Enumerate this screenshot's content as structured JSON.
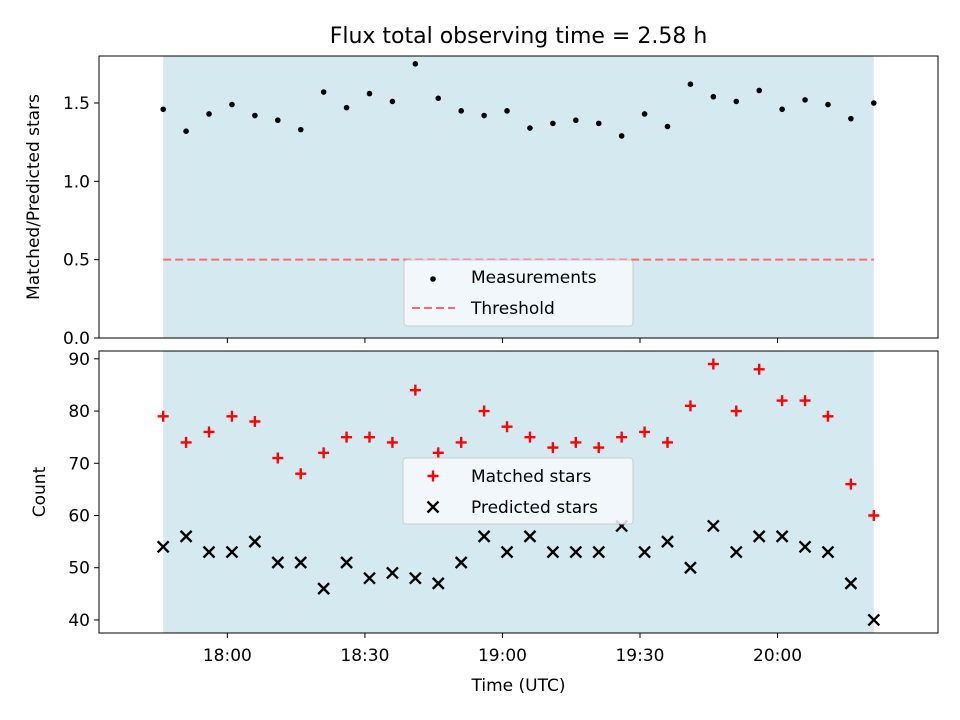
{
  "chart_data": [
    {
      "type": "scatter",
      "title": "Flux total observing time = 2.58 h",
      "ylabel": "Matched/Predicted stars",
      "ylim": [
        0,
        1.8
      ],
      "yticks": [
        0.0,
        0.5,
        1.0,
        1.5
      ],
      "ytick_labels": [
        "0.0",
        "0.5",
        "1.0",
        "1.5"
      ],
      "x": [
        "17:46",
        "17:51",
        "17:56",
        "18:01",
        "18:06",
        "18:11",
        "18:16",
        "18:21",
        "18:26",
        "18:31",
        "18:36",
        "18:41",
        "18:46",
        "18:51",
        "18:56",
        "19:01",
        "19:06",
        "19:11",
        "19:16",
        "19:21",
        "19:26",
        "19:31",
        "19:36",
        "19:41",
        "19:46",
        "19:51",
        "19:56",
        "20:01",
        "20:06",
        "20:11",
        "20:16",
        "20:21"
      ],
      "series": [
        {
          "name": "Measurements",
          "marker": "dot",
          "color": "#000000",
          "values": [
            1.46,
            1.32,
            1.43,
            1.49,
            1.42,
            1.39,
            1.33,
            1.57,
            1.47,
            1.56,
            1.51,
            1.75,
            1.53,
            1.45,
            1.42,
            1.45,
            1.34,
            1.37,
            1.39,
            1.37,
            1.29,
            1.43,
            1.35,
            1.62,
            1.54,
            1.51,
            1.58,
            1.46,
            1.52,
            1.49,
            1.4,
            1.5
          ]
        },
        {
          "name": "Threshold",
          "line": "dashed",
          "color": "#ff6b6b",
          "value": 0.5
        }
      ],
      "shaded_region": {
        "from": "17:46",
        "to": "20:21",
        "color": "#d4eaf0"
      },
      "legend": {
        "placement": "lower-center",
        "entries": [
          "Measurements",
          "Threshold"
        ]
      }
    },
    {
      "type": "scatter",
      "xlabel": "Time (UTC)",
      "ylabel": "Count",
      "ylim": [
        37.5,
        91.5
      ],
      "yticks": [
        40,
        50,
        60,
        70,
        80,
        90
      ],
      "ytick_labels": [
        "40",
        "50",
        "60",
        "70",
        "80",
        "90"
      ],
      "xticks": [
        "18:00",
        "18:30",
        "19:00",
        "19:30",
        "20:00"
      ],
      "x": [
        "17:46",
        "17:51",
        "17:56",
        "18:01",
        "18:06",
        "18:11",
        "18:16",
        "18:21",
        "18:26",
        "18:31",
        "18:36",
        "18:41",
        "18:46",
        "18:51",
        "18:56",
        "19:01",
        "19:06",
        "19:11",
        "19:16",
        "19:21",
        "19:26",
        "19:31",
        "19:36",
        "19:41",
        "19:46",
        "19:51",
        "19:56",
        "20:01",
        "20:06",
        "20:11",
        "20:16",
        "20:21"
      ],
      "series": [
        {
          "name": "Matched stars",
          "marker": "plus",
          "color": "#ff0000",
          "values": [
            79,
            74,
            76,
            79,
            78,
            71,
            68,
            72,
            75,
            75,
            74,
            84,
            72,
            74,
            80,
            77,
            75,
            73,
            74,
            73,
            75,
            76,
            74,
            81,
            89,
            80,
            88,
            82,
            82,
            79,
            66,
            60
          ]
        },
        {
          "name": "Predicted stars",
          "marker": "x",
          "color": "#000000",
          "values": [
            54,
            56,
            53,
            53,
            55,
            51,
            51,
            46,
            51,
            48,
            49,
            48,
            47,
            51,
            56,
            53,
            56,
            53,
            53,
            53,
            58,
            53,
            55,
            50,
            58,
            53,
            56,
            56,
            54,
            53,
            47,
            40
          ]
        }
      ],
      "shaded_region": {
        "from": "17:46",
        "to": "20:21",
        "color": "#d4eaf0"
      },
      "legend": {
        "placement": "center",
        "entries": [
          "Matched stars",
          "Predicted stars"
        ]
      }
    }
  ]
}
